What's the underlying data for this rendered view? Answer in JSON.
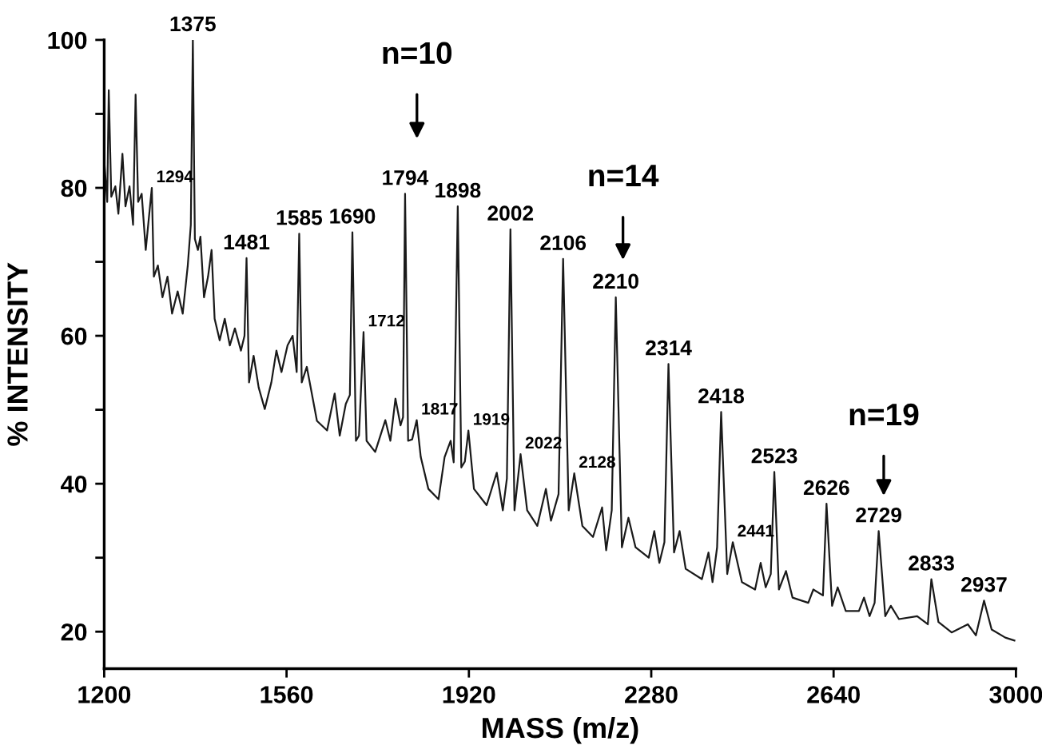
{
  "chart_data": {
    "type": "line",
    "xlabel": "MASS (m/z)",
    "ylabel": "% INTENSITY",
    "xlim": [
      1200,
      3000
    ],
    "xticks": [
      1200,
      1560,
      1920,
      2280,
      2640,
      3000
    ],
    "ylim": [
      15,
      100
    ],
    "yticks": [
      20,
      {
        "value": 30,
        "label": null
      },
      40,
      {
        "value": 50,
        "label": null
      },
      60,
      {
        "value": 70,
        "label": null
      },
      80,
      {
        "value": 90,
        "label": null
      },
      100
    ],
    "grid": false,
    "legend": false,
    "marker": "none",
    "line_style": "solid",
    "series": [
      {
        "color": "#1a1a1a",
        "x": [
          1200,
          1206,
          1209,
          1214,
          1222,
          1228,
          1236,
          1242,
          1250,
          1257,
          1262,
          1267,
          1274,
          1282,
          1294,
          1298,
          1306,
          1315,
          1325,
          1334,
          1345,
          1355,
          1365,
          1371,
          1375,
          1379,
          1385,
          1390,
          1397,
          1405,
          1412,
          1418,
          1428,
          1438,
          1448,
          1458,
          1470,
          1477,
          1481,
          1486,
          1495,
          1505,
          1517,
          1530,
          1540,
          1550,
          1562,
          1572,
          1580,
          1585,
          1590,
          1600,
          1620,
          1640,
          1655,
          1665,
          1677,
          1685,
          1690,
          1697,
          1703,
          1712,
          1718,
          1735,
          1755,
          1765,
          1775,
          1785,
          1790,
          1794,
          1800,
          1808,
          1817,
          1825,
          1840,
          1860,
          1872,
          1884,
          1890,
          1898,
          1905,
          1912,
          1919,
          1930,
          1955,
          1975,
          1987,
          1995,
          2002,
          2010,
          2022,
          2035,
          2055,
          2072,
          2082,
          2097,
          2106,
          2117,
          2128,
          2144,
          2165,
          2183,
          2191,
          2202,
          2210,
          2222,
          2235,
          2249,
          2275,
          2286,
          2296,
          2306,
          2314,
          2325,
          2336,
          2348,
          2380,
          2393,
          2401,
          2410,
          2418,
          2430,
          2441,
          2459,
          2485,
          2496,
          2506,
          2516,
          2523,
          2532,
          2546,
          2559,
          2590,
          2600,
          2619,
          2626,
          2637,
          2648,
          2664,
          2690,
          2700,
          2711,
          2721,
          2729,
          2742,
          2753,
          2769,
          2805,
          2826,
          2833,
          2847,
          2873,
          2905,
          2921,
          2937,
          2952,
          2979,
          2997
        ],
        "values": [
          83.8,
          78.1,
          93.2,
          78.8,
          80.2,
          76.5,
          84.6,
          77.5,
          80.2,
          75.0,
          92.6,
          78.1,
          79.2,
          71.6,
          80.0,
          68.0,
          69.5,
          65.2,
          68.0,
          63.0,
          66.0,
          63.0,
          69.5,
          75.0,
          100,
          73.1,
          71.6,
          73.4,
          65.2,
          68.0,
          71.6,
          62.3,
          59.4,
          62.3,
          58.7,
          61.0,
          58.0,
          60.0,
          70.5,
          53.7,
          57.3,
          53.0,
          50.1,
          53.7,
          58.0,
          55.1,
          58.7,
          60.0,
          55.1,
          73.8,
          53.7,
          55.8,
          48.5,
          47.2,
          52.2,
          46.5,
          50.8,
          52.0,
          74.0,
          45.8,
          46.5,
          60.5,
          45.8,
          44.3,
          48.6,
          45.8,
          51.5,
          47.9,
          49.0,
          79.2,
          45.8,
          46.0,
          48.6,
          43.6,
          39.3,
          37.9,
          43.6,
          45.8,
          42.9,
          77.5,
          42.2,
          43.0,
          47.2,
          39.3,
          37.1,
          41.5,
          36.4,
          40.7,
          74.4,
          36.4,
          44.0,
          36.4,
          34.3,
          39.3,
          35.0,
          38.6,
          70.4,
          36.4,
          41.4,
          34.3,
          32.8,
          36.8,
          31.0,
          36.4,
          65.2,
          31.4,
          35.4,
          31.4,
          30.0,
          33.6,
          29.3,
          32.1,
          56.2,
          30.7,
          33.6,
          28.5,
          27.1,
          30.7,
          26.7,
          31.4,
          49.7,
          27.8,
          32.1,
          26.7,
          25.7,
          29.3,
          26.0,
          27.8,
          41.6,
          25.7,
          28.2,
          24.6,
          23.9,
          25.7,
          24.9,
          37.3,
          23.5,
          26.0,
          22.8,
          22.8,
          24.6,
          22.1,
          23.9,
          33.6,
          22.1,
          23.5,
          21.7,
          22.1,
          21.0,
          27.1,
          21.3,
          19.9,
          21.0,
          19.5,
          24.2,
          20.3,
          19.2,
          18.8
        ]
      }
    ],
    "annotations": [
      {
        "text": "1294",
        "x": 1294,
        "y": 80.0
      },
      {
        "text": "1375",
        "x": 1375,
        "y": 100
      },
      {
        "text": "1481",
        "x": 1481,
        "y": 70.5
      },
      {
        "text": "1585",
        "x": 1585,
        "y": 73.8
      },
      {
        "text": "1690",
        "x": 1690,
        "y": 74.0
      },
      {
        "text": "1712",
        "x": 1712,
        "y": 60.5
      },
      {
        "text": "1794",
        "x": 1794,
        "y": 79.2
      },
      {
        "text": "1817",
        "x": 1817,
        "y": 48.6
      },
      {
        "text": "1898",
        "x": 1898,
        "y": 77.5
      },
      {
        "text": "1919",
        "x": 1919,
        "y": 47.2
      },
      {
        "text": "2002",
        "x": 2002,
        "y": 74.4
      },
      {
        "text": "2022",
        "x": 2022,
        "y": 44.0
      },
      {
        "text": "2106",
        "x": 2106,
        "y": 70.4
      },
      {
        "text": "2128",
        "x": 2128,
        "y": 41.4
      },
      {
        "text": "2210",
        "x": 2210,
        "y": 65.2
      },
      {
        "text": "2314",
        "x": 2314,
        "y": 56.2
      },
      {
        "text": "2418",
        "x": 2418,
        "y": 49.7
      },
      {
        "text": "2441",
        "x": 2441,
        "y": 32.1
      },
      {
        "text": "2523",
        "x": 2523,
        "y": 41.6
      },
      {
        "text": "2626",
        "x": 2626,
        "y": 37.3
      },
      {
        "text": "2729",
        "x": 2729,
        "y": 33.6
      },
      {
        "text": "2833",
        "x": 2833,
        "y": 27.1
      },
      {
        "text": "2937",
        "x": 2937,
        "y": 24.2
      },
      "n=10",
      "n=14",
      "n=19"
    ]
  }
}
